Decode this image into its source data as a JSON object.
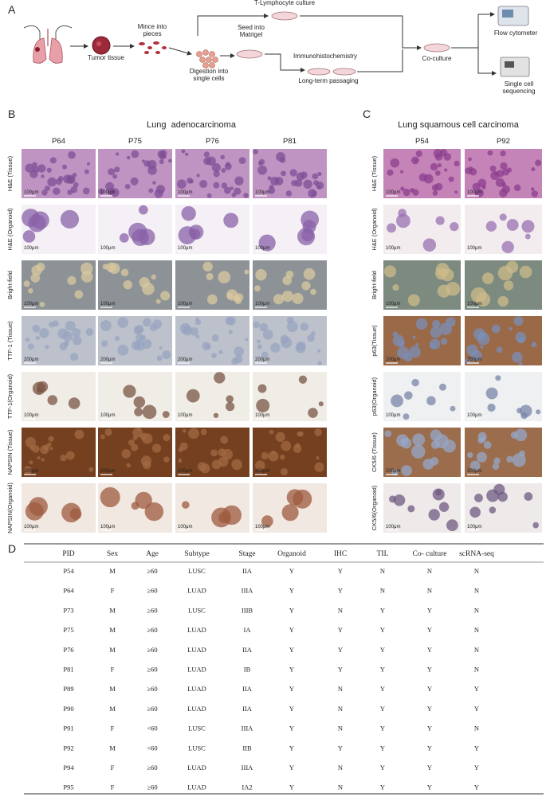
{
  "panel_a": {
    "label": "A",
    "steps": [
      {
        "lines": [
          "Tumor tissue"
        ]
      },
      {
        "lines": [
          "Mince into",
          "pieces"
        ]
      },
      {
        "lines": [
          "Digestion into",
          "single cells"
        ]
      },
      {
        "lines": [
          "Seed into",
          "Matrigel"
        ]
      },
      {
        "lines": [
          "T-Lymphocyte culture"
        ]
      },
      {
        "lines": [
          "Immunohistochemistry"
        ]
      },
      {
        "lines": [
          "Long-term passaging"
        ]
      },
      {
        "lines": [
          "Co-culture"
        ]
      },
      {
        "lines": [
          "Flow cytometer"
        ]
      },
      {
        "lines": [
          "Single cell",
          "sequencing"
        ]
      }
    ]
  },
  "panel_b": {
    "label": "B",
    "title": "Lung  adenocarcinoma",
    "columns": [
      "P64",
      "P75",
      "P76",
      "P81"
    ],
    "rows": [
      "H&E (Tissue)",
      "H&E (Organoid)",
      "Bright-field",
      "TTF-1 (Tissue)",
      "TTF-1(Organoid)",
      "NAPSIN (Tissue)",
      "NAPSIN(Organoid)"
    ],
    "scale_bars": [
      [
        "100μm",
        "100μm",
        "100μm",
        "100μm"
      ],
      [
        "100μm",
        "100μm",
        "100μm",
        "100μm"
      ],
      [
        "100μm",
        "100μm",
        "100μm",
        "100μm"
      ],
      [
        "200μm",
        "200μm",
        "200μm",
        "200μm"
      ],
      [
        "100μm",
        "100μm",
        "100μm",
        "100μm"
      ],
      [
        "200μm",
        "200μm",
        "200μm",
        "200μm"
      ],
      [
        "100μm",
        "100μm",
        "100μm",
        "100μm"
      ]
    ]
  },
  "panel_c": {
    "label": "C",
    "title": "Lung squamous cell carcinoma",
    "columns": [
      "P54",
      "P92"
    ],
    "rows": [
      "H&E (Tissue)",
      "H&E (Organoid)",
      "Bright-field",
      "p63(Tissue)",
      "p63(Organoid)",
      "CK5/6 (Tissue)",
      "CK5/6(Organoid)"
    ],
    "scale_bars": [
      [
        "100μm",
        "100μm"
      ],
      [
        "100μm",
        "100μm"
      ],
      [
        "100μm",
        "100μm"
      ],
      [
        "200μm",
        "200μm"
      ],
      [
        "100μm",
        "100μm"
      ],
      [
        "200μm",
        "200μm"
      ],
      [
        "100μm",
        "100μm"
      ]
    ]
  },
  "panel_d": {
    "label": "D",
    "table": {
      "header": [
        "PID",
        "Sex",
        "Age",
        "Subtype",
        "Stage",
        "Organoid",
        "IHC",
        "TIL",
        "Co- culture",
        "scRNA-seq"
      ],
      "rows": [
        [
          "P54",
          "M",
          "≥60",
          "LUSC",
          "IIA",
          "Y",
          "Y",
          "N",
          "N",
          "N"
        ],
        [
          "P64",
          "F",
          "≥60",
          "LUAD",
          "IIIA",
          "Y",
          "Y",
          "N",
          "N",
          "N"
        ],
        [
          "P73",
          "M",
          "≥60",
          "LUSC",
          "IIIB",
          "Y",
          "N",
          "Y",
          "Y",
          "N"
        ],
        [
          "P75",
          "M",
          "≥60",
          "LUAD",
          "IA",
          "Y",
          "Y",
          "Y",
          "Y",
          "N"
        ],
        [
          "P76",
          "M",
          "≥60",
          "LUAD",
          "IIA",
          "Y",
          "Y",
          "Y",
          "Y",
          "N"
        ],
        [
          "P81",
          "F",
          "≥60",
          "LUAD",
          "IB",
          "Y",
          "Y",
          "Y",
          "Y",
          "N"
        ],
        [
          "P89",
          "M",
          "≥60",
          "LUAD",
          "IIA",
          "Y",
          "N",
          "Y",
          "Y",
          "Y"
        ],
        [
          "P90",
          "M",
          "≥60",
          "LUAD",
          "IIA",
          "Y",
          "N",
          "Y",
          "Y",
          "Y"
        ],
        [
          "P91",
          "F",
          "<60",
          "LUSC",
          "IIIA",
          "Y",
          "N",
          "Y",
          "Y",
          "N"
        ],
        [
          "P92",
          "M",
          "<60",
          "LUSC",
          "IIB",
          "Y",
          "Y",
          "Y",
          "Y",
          "Y"
        ],
        [
          "P94",
          "F",
          "≥60",
          "LUAD",
          "IIIA",
          "Y",
          "N",
          "Y",
          "Y",
          "Y"
        ],
        [
          "P95",
          "F",
          "≥60",
          "LUAD",
          "IA2",
          "Y",
          "N",
          "Y",
          "Y",
          "Y"
        ]
      ]
    }
  }
}
